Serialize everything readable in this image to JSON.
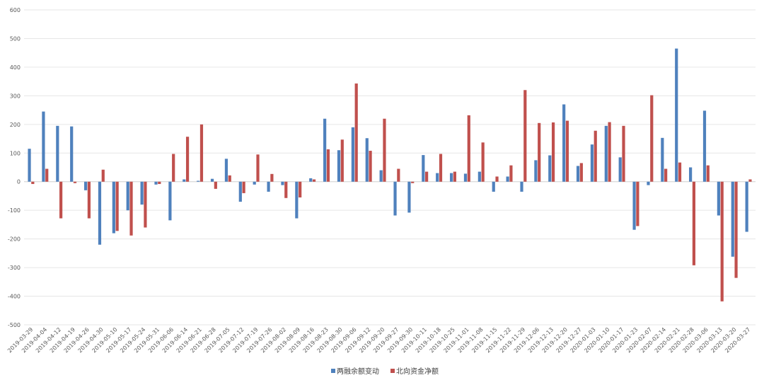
{
  "chart_data": {
    "type": "bar",
    "title": "",
    "xlabel": "",
    "ylabel": "",
    "ylim": [
      -500,
      600
    ],
    "yticks": [
      -500,
      -400,
      -300,
      -200,
      -100,
      0,
      100,
      200,
      300,
      400,
      500,
      600
    ],
    "grid": true,
    "legend_position": "bottom",
    "categories": [
      "2019-03-29",
      "2019-04-04",
      "2019-04-12",
      "2019-04-19",
      "2019-04-26",
      "2019-04-30",
      "2019-05-10",
      "2019-05-17",
      "2019-05-24",
      "2019-05-31",
      "2019-06-06",
      "2019-06-14",
      "2019-06-21",
      "2019-06-28",
      "2019-07-05",
      "2019-07-12",
      "2019-07-19",
      "2019-07-26",
      "2019-08-02",
      "2019-08-09",
      "2019-08-16",
      "2019-08-23",
      "2019-08-30",
      "2019-09-06",
      "2019-09-12",
      "2019-09-20",
      "2019-09-27",
      "2019-09-30",
      "2019-10-11",
      "2019-10-18",
      "2019-10-25",
      "2019-11-01",
      "2019-11-08",
      "2019-11-15",
      "2019-11-22",
      "2019-11-29",
      "2019-12-06",
      "2019-12-13",
      "2019-12-20",
      "2019-12-27",
      "2020-01-03",
      "2020-01-10",
      "2020-01-17",
      "2020-01-23",
      "2020-02-07",
      "2020-02-14",
      "2020-02-21",
      "2020-02-28",
      "2020-03-06",
      "2020-03-13",
      "2020-03-20",
      "2020-03-27"
    ],
    "series": [
      {
        "name": "两融余额变动",
        "color": "#4f81bd",
        "values": [
          115,
          245,
          195,
          193,
          -30,
          -220,
          -180,
          -100,
          -80,
          -10,
          -135,
          8,
          3,
          10,
          80,
          -70,
          -10,
          -35,
          -12,
          -128,
          12,
          220,
          110,
          190,
          152,
          40,
          -118,
          -108,
          93,
          30,
          30,
          28,
          35,
          -35,
          18,
          -35,
          75,
          92,
          270,
          55,
          130,
          195,
          85,
          -168,
          -12,
          153,
          465,
          50,
          248,
          -118,
          -262,
          -175
        ]
      },
      {
        "name": "北向资金净额",
        "color": "#c0504d",
        "values": [
          -8,
          45,
          -128,
          -5,
          -128,
          42,
          -172,
          -188,
          -160,
          -8,
          97,
          157,
          200,
          -25,
          22,
          -40,
          95,
          27,
          -57,
          -55,
          8,
          113,
          147,
          343,
          108,
          220,
          45,
          -5,
          35,
          97,
          35,
          232,
          137,
          18,
          57,
          320,
          205,
          207,
          213,
          65,
          178,
          208,
          195,
          -155,
          302,
          45,
          67,
          -292,
          57,
          -418,
          -336,
          8
        ]
      }
    ]
  }
}
